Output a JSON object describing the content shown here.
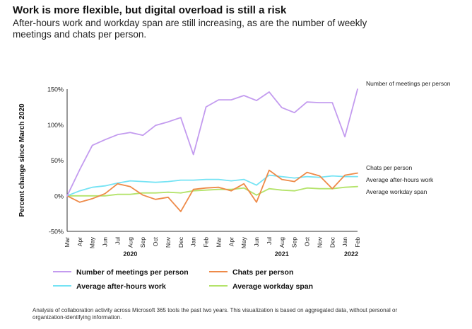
{
  "header": {
    "title": "Work is more flexible, but digital overload is still a risk",
    "subtitle": "After-hours work and workday span are still increasing, as are the number of weekly meetings and chats per person."
  },
  "footnote": "Analysis of collaboration activity across Microsoft 365 tools the past two years. This visualization is based on aggregated data, without personal or organization-identifying information.",
  "chart_data": {
    "type": "line",
    "ylabel": "Percent change since March 2020",
    "ylim": [
      -50,
      150
    ],
    "yticks": [
      -50,
      0,
      50,
      100,
      150
    ],
    "ytick_labels": [
      "-50%",
      "0%",
      "50%",
      "100%",
      "150%"
    ],
    "categories": [
      "Mar",
      "Apr",
      "May",
      "Jun",
      "Jul",
      "Aug",
      "Sep",
      "Oct",
      "Nov",
      "Dec",
      "Jan",
      "Feb",
      "Mar",
      "Apr",
      "May",
      "Jun",
      "Jul",
      "Aug",
      "Sep",
      "Oct",
      "Nov",
      "Dec",
      "Jan",
      "Feb"
    ],
    "year_labels": [
      {
        "label": "2020",
        "index": 5
      },
      {
        "label": "2021",
        "index": 17
      },
      {
        "label": "2022",
        "index": 22.5
      }
    ],
    "grid": false,
    "legend": "bottom",
    "series": [
      {
        "name": "Number of meetings per person",
        "color": "#c39bef",
        "values": [
          0,
          37,
          71,
          79,
          86,
          89,
          85,
          99,
          104,
          110,
          58,
          125,
          135,
          135,
          141,
          134,
          146,
          124,
          117,
          132,
          131,
          131,
          83,
          150
        ]
      },
      {
        "name": "Chats per person",
        "color": "#ee8a48",
        "values": [
          0,
          -9,
          -4,
          3,
          17,
          13,
          1,
          -5,
          -2,
          -22,
          9,
          11,
          12,
          7,
          17,
          -9,
          36,
          23,
          20,
          33,
          28,
          10,
          29,
          32
        ]
      },
      {
        "name": "Average after-hours work",
        "color": "#75e3f4",
        "values": [
          0,
          7,
          12,
          14,
          18,
          21,
          20,
          19,
          20,
          22,
          22,
          23,
          23,
          21,
          23,
          15,
          29,
          27,
          25,
          27,
          26,
          28,
          27,
          27
        ]
      },
      {
        "name": "Average workday span",
        "color": "#b4e36a",
        "values": [
          0,
          0,
          0,
          0,
          2,
          2,
          4,
          4,
          5,
          4,
          7,
          8,
          9,
          9,
          11,
          1,
          10,
          8,
          7,
          11,
          10,
          10,
          12,
          13
        ]
      }
    ],
    "end_labels": [
      "Number of meetings per person",
      "Chats per person",
      "Average after-hours work",
      "Average workday span"
    ]
  }
}
